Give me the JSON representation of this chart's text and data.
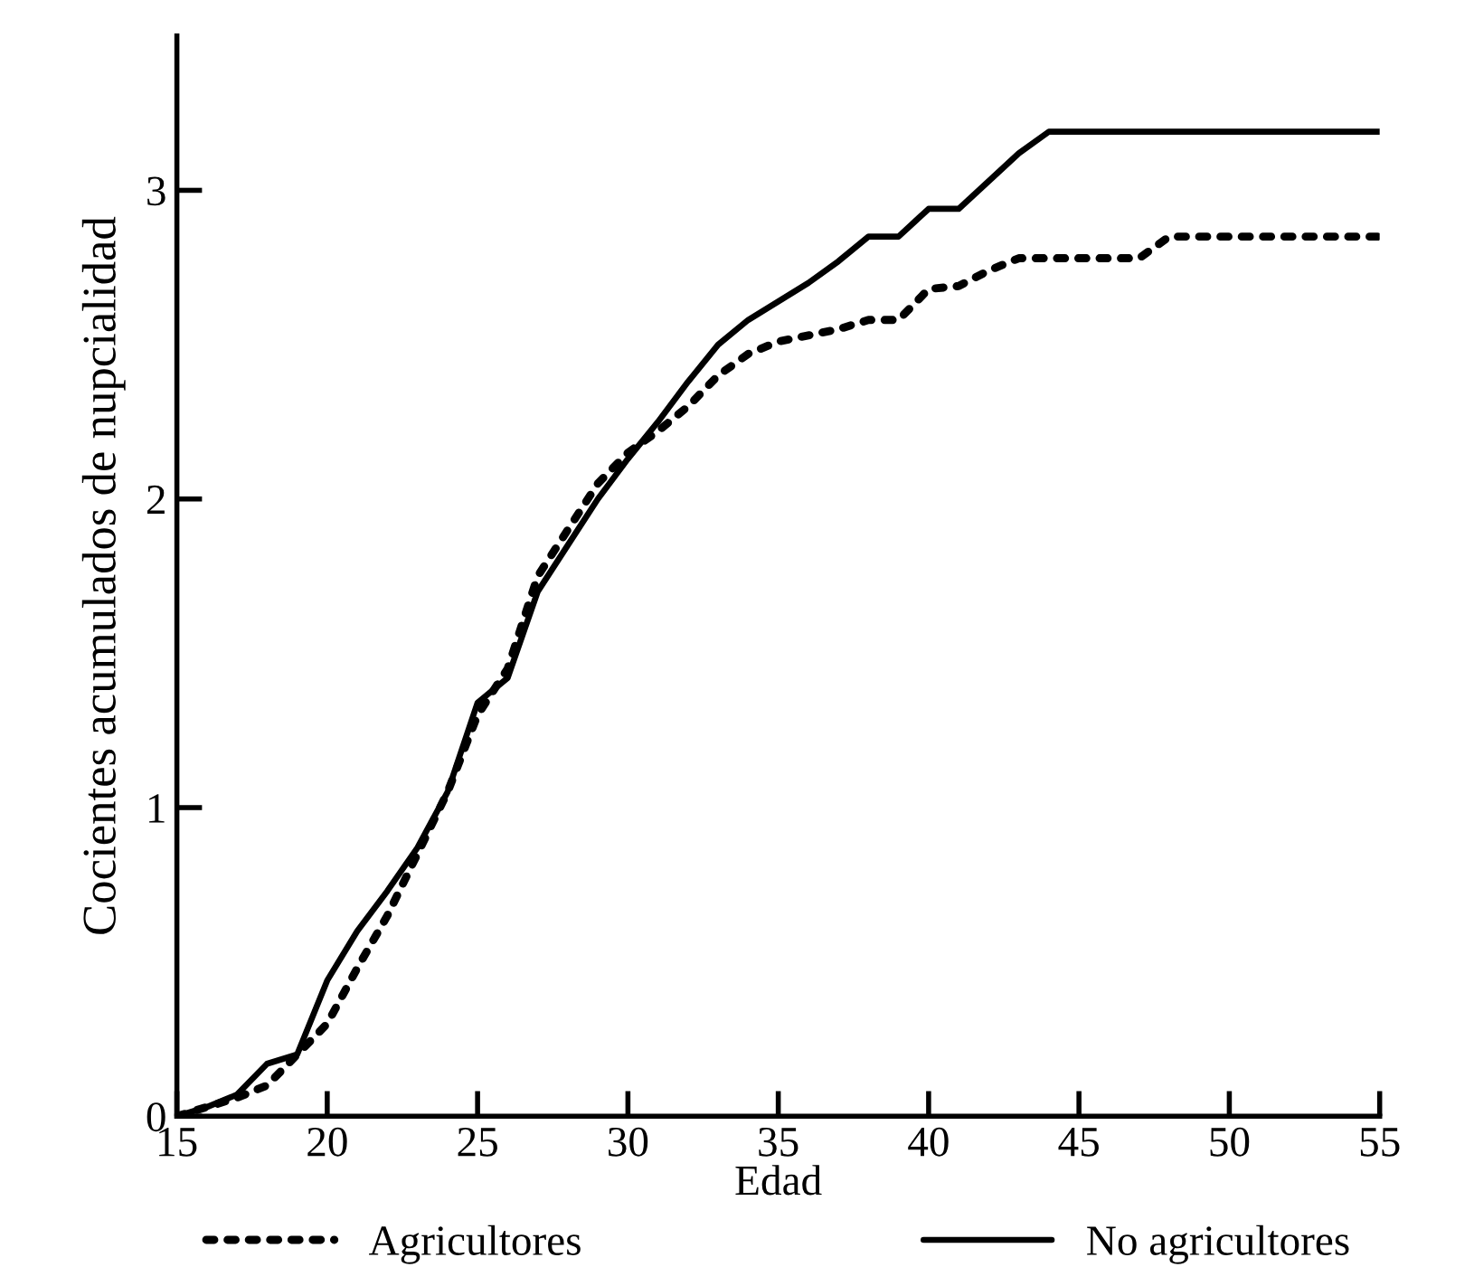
{
  "chart_data": {
    "type": "line",
    "xlabel": "Edad",
    "ylabel": "Cocientes acumulados de nupcialidad",
    "x": [
      15,
      16,
      17,
      18,
      19,
      20,
      21,
      22,
      23,
      24,
      25,
      26,
      27,
      28,
      29,
      30,
      31,
      32,
      33,
      34,
      35,
      36,
      37,
      38,
      39,
      40,
      41,
      42,
      43,
      44,
      45,
      46,
      47,
      48,
      49,
      50,
      51,
      52,
      53,
      54,
      55
    ],
    "series": [
      {
        "name": "Agricultores",
        "color": "#000000",
        "line_style": "dotted",
        "values": [
          0,
          0.03,
          0.06,
          0.1,
          0.2,
          0.3,
          0.48,
          0.65,
          0.85,
          1.05,
          1.3,
          1.45,
          1.75,
          1.9,
          2.05,
          2.15,
          2.22,
          2.3,
          2.4,
          2.47,
          2.51,
          2.53,
          2.55,
          2.58,
          2.58,
          2.68,
          2.69,
          2.74,
          2.78,
          2.78,
          2.78,
          2.78,
          2.78,
          2.85,
          2.85,
          2.85,
          2.85,
          2.85,
          2.85,
          2.85,
          2.85
        ]
      },
      {
        "name": "No agricultores",
        "color": "#000000",
        "line_style": "solid",
        "values": [
          0,
          0.03,
          0.07,
          0.17,
          0.2,
          0.44,
          0.6,
          0.73,
          0.87,
          1.05,
          1.34,
          1.42,
          1.7,
          1.85,
          2.0,
          2.13,
          2.25,
          2.38,
          2.5,
          2.58,
          2.64,
          2.7,
          2.77,
          2.85,
          2.85,
          2.94,
          2.94,
          3.03,
          3.12,
          3.19,
          3.19,
          3.19,
          3.19,
          3.19,
          3.19,
          3.19,
          3.19,
          3.19,
          3.19,
          3.19,
          3.19
        ]
      }
    ],
    "xlim": [
      15,
      55
    ],
    "xticks": [
      15,
      20,
      25,
      30,
      35,
      40,
      45,
      50,
      55
    ],
    "ylim": [
      0,
      3.5
    ],
    "yticks": [
      0,
      1,
      2,
      3
    ],
    "grid": false,
    "legend": "bottom",
    "marker": "none"
  }
}
